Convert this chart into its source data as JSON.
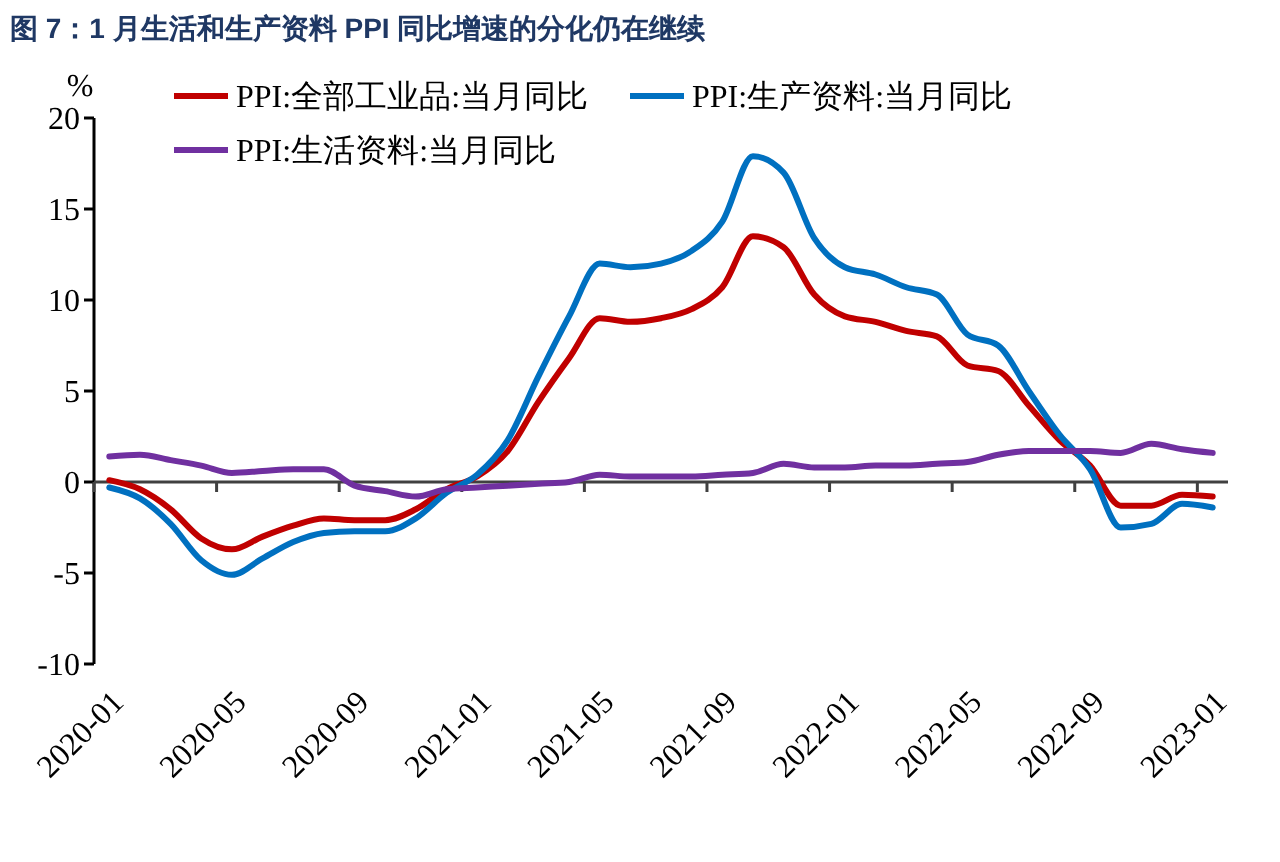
{
  "chart_data": {
    "type": "line",
    "title": "图 7：1 月生活和生产资料 PPI 同比增速的分化仍在继续",
    "ylabel": "%",
    "categories": [
      "2020-01",
      null,
      null,
      null,
      "2020-05",
      null,
      null,
      null,
      "2020-09",
      null,
      null,
      null,
      "2021-01",
      null,
      null,
      null,
      "2021-05",
      null,
      null,
      null,
      "2021-09",
      null,
      null,
      null,
      "2022-01",
      null,
      null,
      null,
      "2022-05",
      null,
      null,
      null,
      "2022-09",
      null,
      null,
      null,
      "2023-01"
    ],
    "series": [
      {
        "name": "PPI:全部工业品:当月同比",
        "color": "#c00000",
        "values": [
          0.1,
          -0.4,
          -1.5,
          -3.1,
          -3.7,
          -3.0,
          -2.4,
          -2.0,
          -2.1,
          -2.1,
          -1.5,
          -0.4,
          0.3,
          1.7,
          4.4,
          6.8,
          9.0,
          8.8,
          9.0,
          9.5,
          10.7,
          13.5,
          12.9,
          10.3,
          9.1,
          8.8,
          8.3,
          8.0,
          6.4,
          6.1,
          4.2,
          2.3,
          0.9,
          -1.3,
          -1.3,
          -0.7,
          -0.8
        ]
      },
      {
        "name": "PPI:生产资料:当月同比",
        "color": "#0070c0",
        "values": [
          -0.3,
          -0.9,
          -2.3,
          -4.3,
          -5.1,
          -4.2,
          -3.3,
          -2.8,
          -2.7,
          -2.7,
          -2.0,
          -0.6,
          0.4,
          2.3,
          5.8,
          9.1,
          12.0,
          11.8,
          12.0,
          12.7,
          14.3,
          17.9,
          17.0,
          13.4,
          11.8,
          11.4,
          10.7,
          10.3,
          8.1,
          7.5,
          5.0,
          2.6,
          0.7,
          -2.5,
          -2.3,
          -1.2,
          -1.4
        ]
      },
      {
        "name": "PPI:生活资料:当月同比",
        "color": "#7030a0",
        "values": [
          1.4,
          1.5,
          1.2,
          0.9,
          0.5,
          0.6,
          0.7,
          0.7,
          -0.2,
          -0.5,
          -0.8,
          -0.4,
          -0.3,
          -0.2,
          -0.1,
          0.0,
          0.4,
          0.3,
          0.3,
          0.3,
          0.4,
          0.5,
          1.0,
          0.8,
          0.8,
          0.9,
          0.9,
          1.0,
          1.1,
          1.5,
          1.7,
          1.7,
          1.7,
          1.6,
          2.1,
          1.8,
          1.6
        ]
      }
    ],
    "ylim": [
      -10,
      20
    ],
    "yticks": [
      -10,
      -5,
      0,
      5,
      10,
      15,
      20
    ],
    "legend": "top",
    "line_style": "solid"
  }
}
